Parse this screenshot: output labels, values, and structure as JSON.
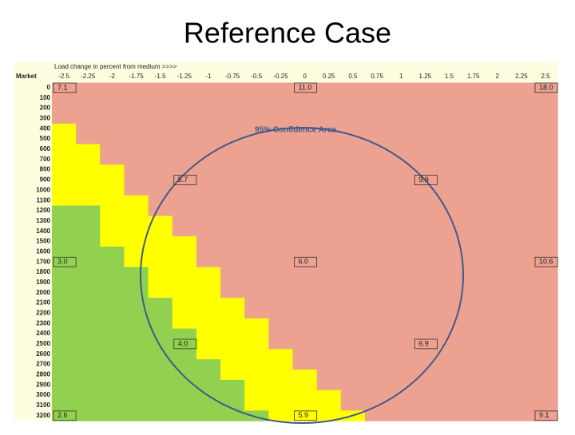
{
  "header": {
    "title": "Reference Case"
  },
  "table": {
    "caption": "Load change in percent from medium >>>>",
    "row_header": "Market",
    "columns": [
      "-2.5",
      "-2.25",
      "-2",
      "-1.75",
      "-1.5",
      "-1.25",
      "-1",
      "-0.75",
      "-0.5",
      "-0.25",
      "0",
      "0.25",
      "0.5",
      "0.75",
      "1",
      "1.25",
      "1.5",
      "1.75",
      "2",
      "2.25",
      "2.5"
    ],
    "rows": [
      "0",
      "100",
      "200",
      "300",
      "400",
      "500",
      "600",
      "700",
      "800",
      "900",
      "1000",
      "1100",
      "1200",
      "1300",
      "1400",
      "1500",
      "1600",
      "1700",
      "1800",
      "1900",
      "2000",
      "2100",
      "2200",
      "2300",
      "2400",
      "2500",
      "2600",
      "2700",
      "2800",
      "2900",
      "3000",
      "3100",
      "3200"
    ],
    "zone_colors": {
      "green": "#92d050",
      "yellow": "#ffff00",
      "red": "#eda190"
    },
    "green_cols": [
      0,
      0,
      0,
      0,
      0,
      0,
      0,
      0,
      0,
      0,
      0,
      0,
      2,
      2,
      2,
      2,
      3,
      3,
      4,
      4,
      4,
      5,
      5,
      5,
      6,
      6,
      6,
      7,
      7,
      8,
      8,
      8,
      9
    ],
    "yellow_cols": [
      0,
      0,
      0,
      0,
      1,
      1,
      2,
      2,
      3,
      3,
      3,
      4,
      4,
      5,
      5,
      6,
      6,
      6,
      7,
      7,
      7,
      8,
      8,
      9,
      9,
      9,
      10,
      10,
      11,
      11,
      12,
      12,
      13
    ],
    "cells": [
      {
        "row": 0,
        "col": 0,
        "text": "7.1"
      },
      {
        "row": 0,
        "col": 10,
        "text": "11.0"
      },
      {
        "row": 0,
        "col": 20,
        "text": "18.0"
      },
      {
        "row": 9,
        "col": 5,
        "text": "5.7"
      },
      {
        "row": 9,
        "col": 15,
        "text": "9.9"
      },
      {
        "row": 17,
        "col": 0,
        "text": "3.0"
      },
      {
        "row": 17,
        "col": 10,
        "text": "6.0"
      },
      {
        "row": 17,
        "col": 20,
        "text": "10.6"
      },
      {
        "row": 25,
        "col": 5,
        "text": "4.0"
      },
      {
        "row": 25,
        "col": 15,
        "text": "6.9"
      },
      {
        "row": 32,
        "col": 0,
        "text": "2.6"
      },
      {
        "row": 32,
        "col": 10,
        "text": "5.9"
      },
      {
        "row": 32,
        "col": 20,
        "text": "9.1"
      }
    ],
    "annotation": "95% Confidence Area"
  }
}
